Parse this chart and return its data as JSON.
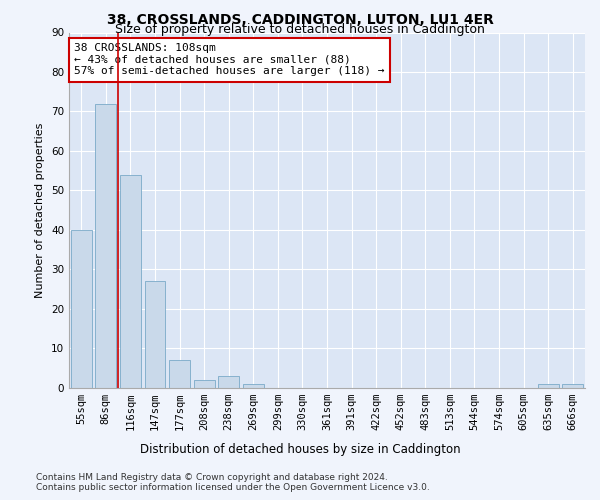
{
  "title": "38, CROSSLANDS, CADDINGTON, LUTON, LU1 4ER",
  "subtitle": "Size of property relative to detached houses in Caddington",
  "xlabel": "Distribution of detached houses by size in Caddington",
  "ylabel": "Number of detached properties",
  "categories": [
    "55sqm",
    "86sqm",
    "116sqm",
    "147sqm",
    "177sqm",
    "208sqm",
    "238sqm",
    "269sqm",
    "299sqm",
    "330sqm",
    "361sqm",
    "391sqm",
    "422sqm",
    "452sqm",
    "483sqm",
    "513sqm",
    "544sqm",
    "574sqm",
    "605sqm",
    "635sqm",
    "666sqm"
  ],
  "values": [
    40,
    72,
    54,
    27,
    7,
    2,
    3,
    1,
    0,
    0,
    0,
    0,
    0,
    0,
    0,
    0,
    0,
    0,
    0,
    1,
    1
  ],
  "bar_color": "#c9d9ea",
  "bar_edge_color": "#7aaac8",
  "fig_bg_color": "#f0f4fc",
  "ax_bg_color": "#dce6f5",
  "grid_color": "#ffffff",
  "vline_color": "#cc0000",
  "vline_x_index": 1.5,
  "annotation_text": "38 CROSSLANDS: 108sqm\n← 43% of detached houses are smaller (88)\n57% of semi-detached houses are larger (118) →",
  "annotation_box_color": "#ffffff",
  "annotation_box_edge_color": "#cc0000",
  "ylim": [
    0,
    90
  ],
  "yticks": [
    0,
    10,
    20,
    30,
    40,
    50,
    60,
    70,
    80,
    90
  ],
  "footnote_line1": "Contains HM Land Registry data © Crown copyright and database right 2024.",
  "footnote_line2": "Contains public sector information licensed under the Open Government Licence v3.0.",
  "title_fontsize": 10,
  "subtitle_fontsize": 9,
  "ylabel_fontsize": 8,
  "xlabel_fontsize": 8.5,
  "tick_fontsize": 7.5,
  "annot_fontsize": 8,
  "footnote_fontsize": 6.5
}
